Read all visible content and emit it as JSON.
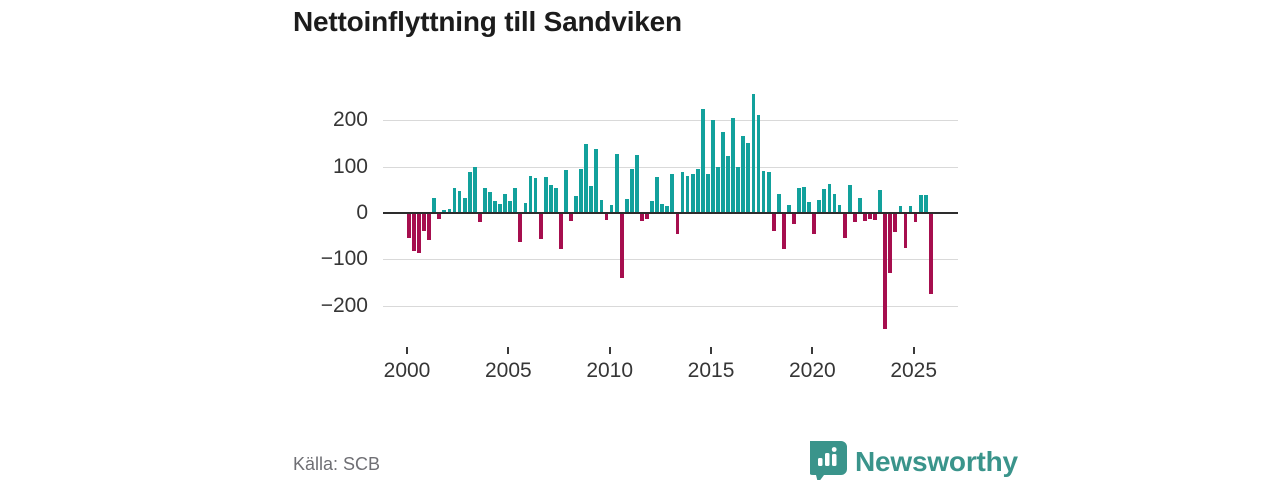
{
  "title": "Nettoinflyttning till Sandviken",
  "source": "Källa: SCB",
  "branding": {
    "name": "Newsworthy",
    "color": "#3a948b"
  },
  "colors": {
    "positive": "#12a19c",
    "negative": "#a60e4e",
    "grid": "#d9d9d9",
    "zero_line": "#2d2d2d",
    "axis_text": "#363636",
    "muted_text": "#6f6f74"
  },
  "chart_data": {
    "type": "bar",
    "title": "Nettoinflyttning till Sandviken",
    "frequency": "quarterly",
    "x_start_year": 2000,
    "grid": "horizontal",
    "ylim": [
      -270,
      270
    ],
    "y_axis": {
      "ticks": [
        {
          "label": "200",
          "value": 200
        },
        {
          "label": "100",
          "value": 100
        },
        {
          "label": "0",
          "value": 0
        },
        {
          "label": "−100",
          "value": -100
        },
        {
          "label": "−200",
          "value": -200
        }
      ]
    },
    "x_axis": {
      "ticks": [
        {
          "label": "2000",
          "year": 2000
        },
        {
          "label": "2005",
          "year": 2005
        },
        {
          "label": "2010",
          "year": 2010
        },
        {
          "label": "2015",
          "year": 2015
        },
        {
          "label": "2020",
          "year": 2020
        },
        {
          "label": "2025",
          "year": 2025
        }
      ]
    },
    "values": [
      -55,
      -82,
      -86,
      -38,
      -58,
      33,
      -12,
      6,
      8,
      55,
      48,
      32,
      88,
      100,
      -20,
      54,
      46,
      25,
      20,
      42,
      26,
      53,
      -63,
      22,
      80,
      76,
      -56,
      78,
      60,
      55,
      -77,
      93,
      -17,
      36,
      94,
      149,
      58,
      138,
      28,
      -15,
      17,
      128,
      -140,
      31,
      94,
      125,
      -17,
      -14,
      25,
      77,
      19,
      15,
      84,
      -45,
      88,
      80,
      84,
      96,
      225,
      85,
      200,
      100,
      174,
      123,
      205,
      100,
      167,
      152,
      257,
      212,
      91,
      89,
      -38,
      42,
      -77,
      18,
      -23,
      54,
      57,
      23,
      -45,
      28,
      51,
      62,
      42,
      17,
      -53,
      60,
      -20,
      33,
      -17,
      -12,
      -16,
      50,
      -250,
      -130,
      -40,
      15,
      -75,
      15,
      -20,
      38,
      38,
      -175
    ]
  }
}
